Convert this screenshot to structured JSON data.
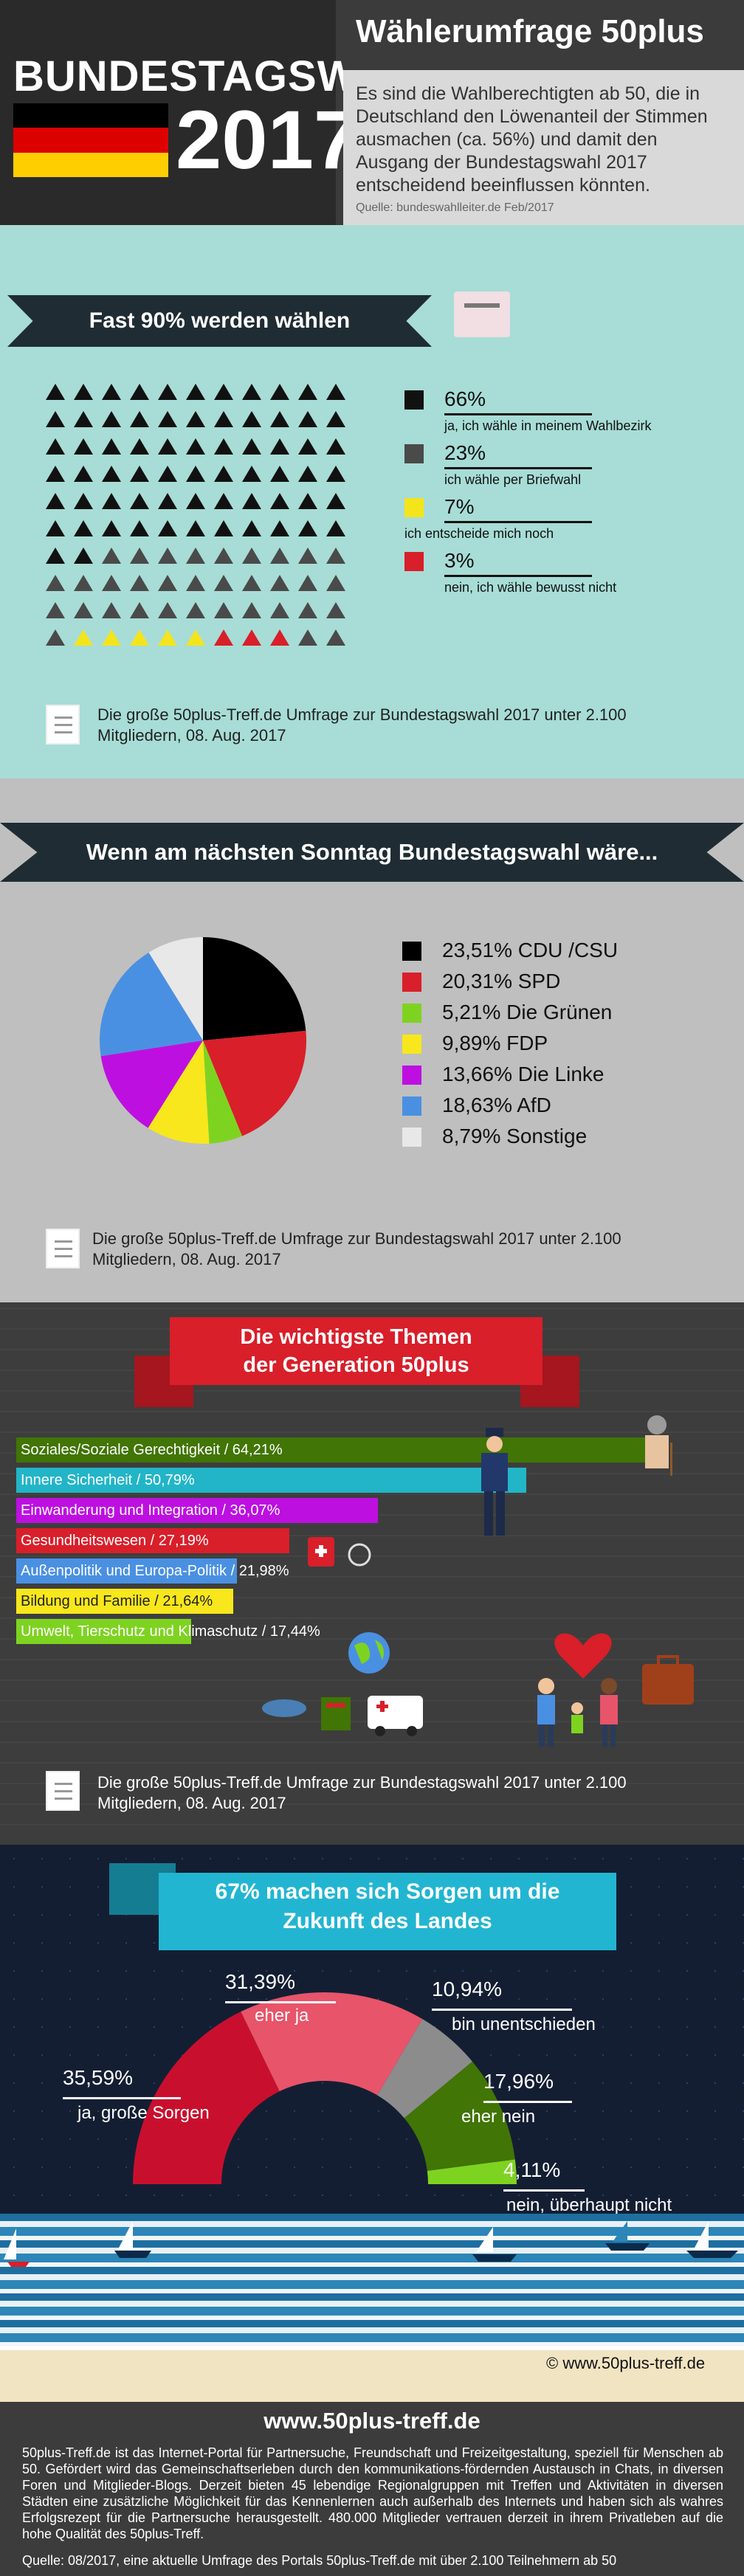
{
  "header": {
    "logo_word": "BUNDESTAGSWAHL",
    "logo_year": "2017",
    "title": "Wählerumfrage 50plus",
    "text": "Es sind die Wahlberechtigten ab 50, die in Deutschland den Löwenanteil der Stimmen ausmachen (ca. 56%) und damit den Ausgang der Bundestagswahl 2017 entscheidend beeinflussen könnten.",
    "source": "Quelle: bundeswahlleiter.de Feb/2017",
    "flag_colors": [
      "#000000",
      "#dd0000",
      "#ffce00"
    ]
  },
  "section1": {
    "title": "Fast 90% werden wählen",
    "legend": [
      {
        "pct": "66%",
        "text": "ja, ich wähle in meinem Wahlbezirk",
        "color": "#111111"
      },
      {
        "pct": "23%",
        "text": "ich wähle per Briefwahl",
        "color": "#4a4a4a"
      },
      {
        "pct": "7%",
        "text": "ich entscheide mich noch",
        "color": "#f4e41c"
      },
      {
        "pct": "3%",
        "text": "nein, ich wähle bewusst nicht",
        "color": "#d81f2a"
      }
    ],
    "note": "Die große 50plus-Treff.de Umfrage zur Bundestagswahl 2017 unter 2.100 Mitgliedern, 08. Aug. 2017"
  },
  "section2": {
    "title": "Wenn am nächsten Sonntag Bundestagswahl wäre...",
    "note": "Die große 50plus-Treff.de Umfrage zur Bundestagswahl 2017 unter 2.100 Mitgliedern, 08. Aug. 2017"
  },
  "chart_data": [
    {
      "type": "pie",
      "categories": [
        "CDU /CSU",
        "SPD",
        "Die Grünen",
        "FDP",
        "Die Linke",
        "AfD",
        "Sonstige"
      ],
      "values": [
        23.51,
        20.31,
        5.21,
        9.89,
        13.66,
        18.63,
        8.79
      ],
      "labels": [
        "23,51% CDU /CSU",
        "20,31% SPD",
        "5,21% Die Grünen",
        "9,89% FDP",
        "13,66% Die Linke",
        "18,63% AfD",
        "8,79% Sonstige"
      ],
      "colors": [
        "#000000",
        "#d81f2a",
        "#7ed321",
        "#f8e71c",
        "#bd10e0",
        "#4a90e2",
        "#e8e8e8"
      ]
    },
    {
      "type": "bar",
      "title": "Die wichtigste Themen der Generation 50plus",
      "categories": [
        "Soziales/Soziale Gerechtigkeit",
        "Innere Sicherheit",
        "Einwanderung und Integration",
        "Gesundheitswesen",
        "Außenpolitik und Europa-Politik",
        "Bildung und Familie",
        "Umwelt, Tierschutz und Klimaschutz"
      ],
      "values": [
        64.21,
        50.79,
        36.07,
        27.19,
        21.98,
        21.64,
        17.44
      ],
      "labels": [
        "Soziales/Soziale Gerechtigkeit / 64,21%",
        "Innere Sicherheit / 50,79%",
        "Einwanderung und Integration / 36,07%",
        "Gesundheitswesen / 27,19%",
        "Außenpolitik und Europa-Politik / 21,98%",
        "Bildung und Familie / 21,64%",
        "Umwelt, Tierschutz und Klimaschutz / 17,44%"
      ],
      "colors": [
        "#417505",
        "#22b5c7",
        "#bd10e0",
        "#d81f2a",
        "#4a90e2",
        "#f8e71c",
        "#7ed321"
      ]
    },
    {
      "type": "pie",
      "title": "67% machen sich Sorgen um die Zukunft des Landes",
      "categories": [
        "ja, große Sorgen",
        "eher ja",
        "bin unentschieden",
        "eher nein",
        "nein, überhaupt nicht"
      ],
      "values": [
        35.59,
        31.39,
        10.94,
        17.96,
        4.11
      ],
      "labels": [
        "35,59%",
        "31,39%",
        "10,94%",
        "17,96%",
        "4,11%"
      ],
      "colors": [
        "#c8102e",
        "#e8546a",
        "#8c8c8c",
        "#417505",
        "#7ed321"
      ]
    }
  ],
  "section3": {
    "title_line1": "Die wichtigste Themen",
    "title_line2": "der Generation 50plus",
    "note": "Die große 50plus-Treff.de Umfrage zur Bundestagswahl 2017 unter 2.100 Mitgliedern, 08. Aug. 2017"
  },
  "section4": {
    "title_line1": "67% machen sich Sorgen um die",
    "title_line2": "Zukunft des Landes",
    "copyright": "© www.50plus-treff.de"
  },
  "footer": {
    "title": "www.50plus-treff.de",
    "text": "50plus-Treff.de ist das Internet-Portal für Partnersuche, Freundschaft und Freizeitgestaltung, speziell für Menschen ab 50. Gefördert wird das Gemeinschaftserleben durch den kommunikations-fördernden Austausch in Chats, in diversen Foren und Mitglieder-Blogs. Derzeit bieten 45 lebendige Regionalgruppen mit Treffen und Aktivitäten in diversen Städten eine zusätzliche Möglichkeit für das Kennenlernen auch außerhalb des Internets und haben sich als wahres Erfolgsrezept für die Partnersuche herausgestellt. 480.000 Mitglieder vertrauen derzeit in ihrem Privatleben auf die hohe Qualität des 50plus-Treff.",
    "source": "Quelle: 08/2017, eine aktuelle Umfrage des Portals 50plus-Treff.de mit über 2.100 Teilnehmern ab 50"
  }
}
